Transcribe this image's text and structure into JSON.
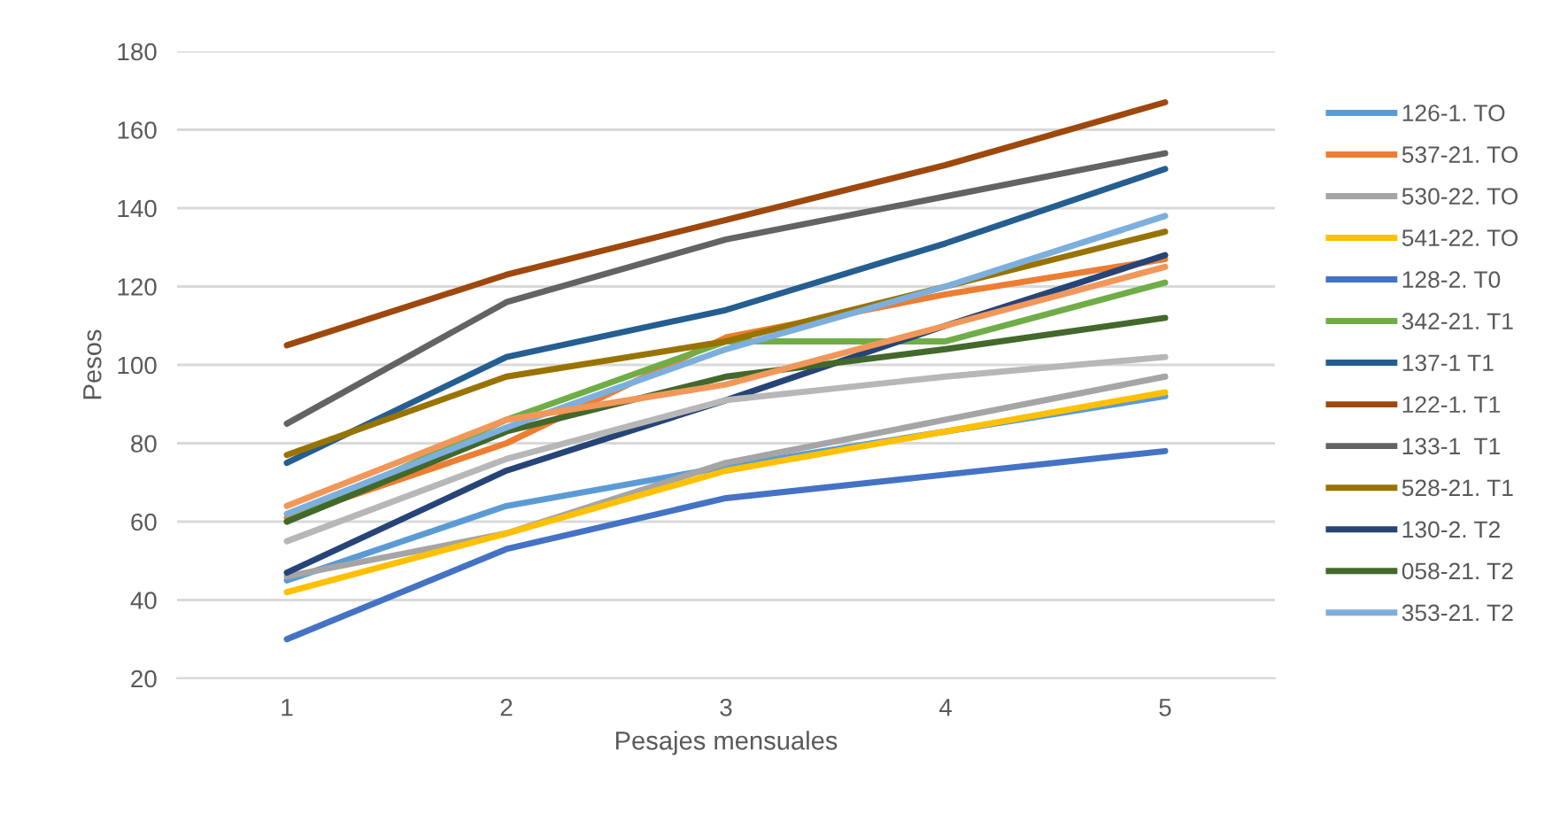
{
  "chart_data": {
    "type": "line",
    "xlabel": "Pesajes mensuales",
    "ylabel": "Pesos",
    "categories": [
      "1",
      "2",
      "3",
      "4",
      "5"
    ],
    "ylim": [
      20,
      180
    ],
    "yticks": [
      20,
      40,
      60,
      80,
      100,
      120,
      140,
      160,
      180
    ],
    "grid": "y",
    "legend": "right",
    "marker": "none",
    "line_style": "solid",
    "series": [
      {
        "name": "126-1. TO",
        "color": "#5b9bd5",
        "values": [
          45,
          64,
          74,
          83,
          92
        ]
      },
      {
        "name": "537-21. TO",
        "color": "#ed7d31",
        "values": [
          61,
          80,
          107,
          118,
          127
        ]
      },
      {
        "name": "530-22. TO",
        "color": "#a5a5a5",
        "values": [
          46,
          57,
          75,
          86,
          97
        ]
      },
      {
        "name": "541-22. TO",
        "color": "#ffc000",
        "values": [
          42,
          57,
          73,
          83,
          93
        ]
      },
      {
        "name": "128-2. T0",
        "color": "#4472c4",
        "values": [
          30,
          53,
          66,
          72,
          78
        ]
      },
      {
        "name": "342-21. T1",
        "color": "#70ad47",
        "values": [
          60,
          86,
          106,
          106,
          121
        ]
      },
      {
        "name": "137-1 T1",
        "color": "#255e91",
        "values": [
          75,
          102,
          114,
          131,
          150
        ]
      },
      {
        "name": "122-1. T1",
        "color": "#9e480e",
        "values": [
          105,
          123,
          137,
          151,
          167
        ]
      },
      {
        "name": "133-1  T1",
        "color": "#636363",
        "values": [
          85,
          116,
          132,
          143,
          154
        ]
      },
      {
        "name": "528-21. T1",
        "color": "#997300",
        "values": [
          77,
          97,
          106,
          120,
          134
        ]
      },
      {
        "name": "130-2. T2",
        "color": "#264478",
        "values": [
          47,
          73,
          91,
          110,
          128
        ]
      },
      {
        "name": "058-21. T2",
        "color": "#43682b",
        "values": [
          60,
          83,
          97,
          104,
          112
        ]
      },
      {
        "name": "353-21. T2",
        "color": "#7cafdd",
        "values": [
          62,
          84,
          104,
          120,
          138
        ]
      },
      {
        "color": "#f1975a",
        "values": [
          64,
          86,
          95,
          110,
          125
        ]
      },
      {
        "color": "#b7b7b7",
        "values": [
          55,
          76,
          91,
          97,
          102
        ]
      }
    ]
  }
}
